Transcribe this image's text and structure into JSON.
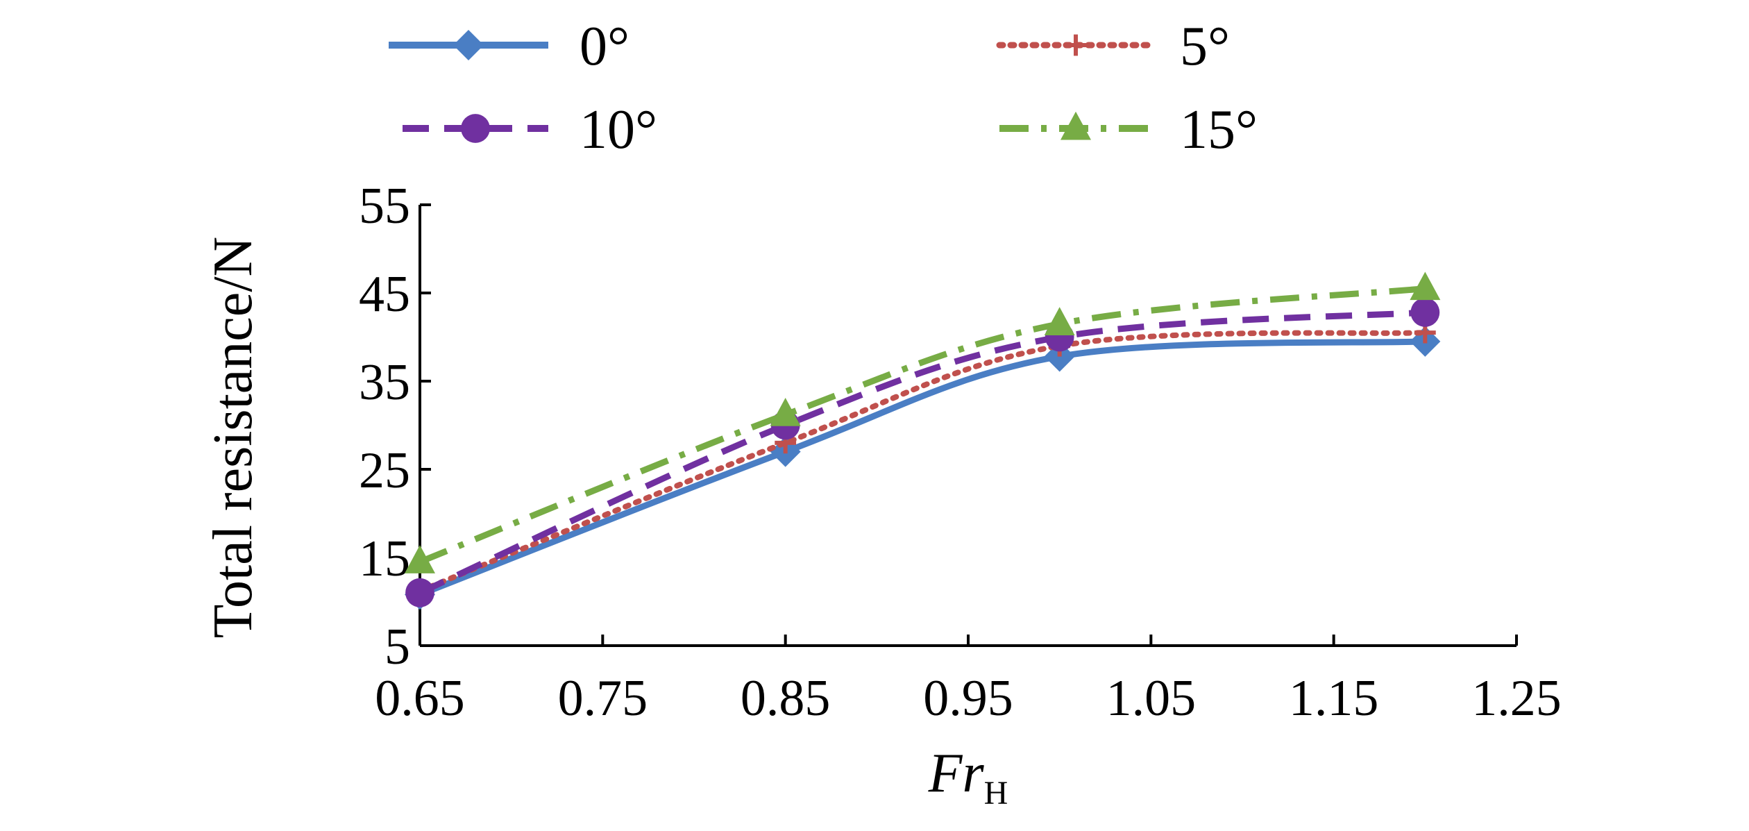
{
  "chart_data": {
    "type": "line",
    "title": "",
    "xlabel": {
      "main": "Fr",
      "subscript": "H"
    },
    "ylabel": "Total resistance/N",
    "x": [
      0.65,
      0.85,
      1.0,
      1.2
    ],
    "xlim": [
      0.65,
      1.25
    ],
    "ylim": [
      5,
      55
    ],
    "xticks": [
      "0.65",
      "0.75",
      "0.85",
      "0.95",
      "1.05",
      "1.15",
      "1.25"
    ],
    "yticks": [
      "5",
      "15",
      "25",
      "35",
      "45",
      "55"
    ],
    "grid": false,
    "legend_position": "top",
    "series": [
      {
        "name": "0°",
        "values": [
          10.8,
          27.0,
          37.8,
          39.5
        ],
        "color": "#4a7ec4",
        "style": "solid",
        "marker": "diamond"
      },
      {
        "name": "5°",
        "values": [
          11.2,
          28.0,
          39.0,
          40.5
        ],
        "color": "#c0504d",
        "style": "dotted",
        "marker": "plus"
      },
      {
        "name": "10°",
        "values": [
          11.0,
          30.0,
          40.0,
          42.8
        ],
        "color": "#7030a0",
        "style": "dashed",
        "marker": "circle"
      },
      {
        "name": "15°",
        "values": [
          14.5,
          31.2,
          41.5,
          45.5
        ],
        "color": "#77ac45",
        "style": "dashdot",
        "marker": "triangle"
      }
    ]
  }
}
